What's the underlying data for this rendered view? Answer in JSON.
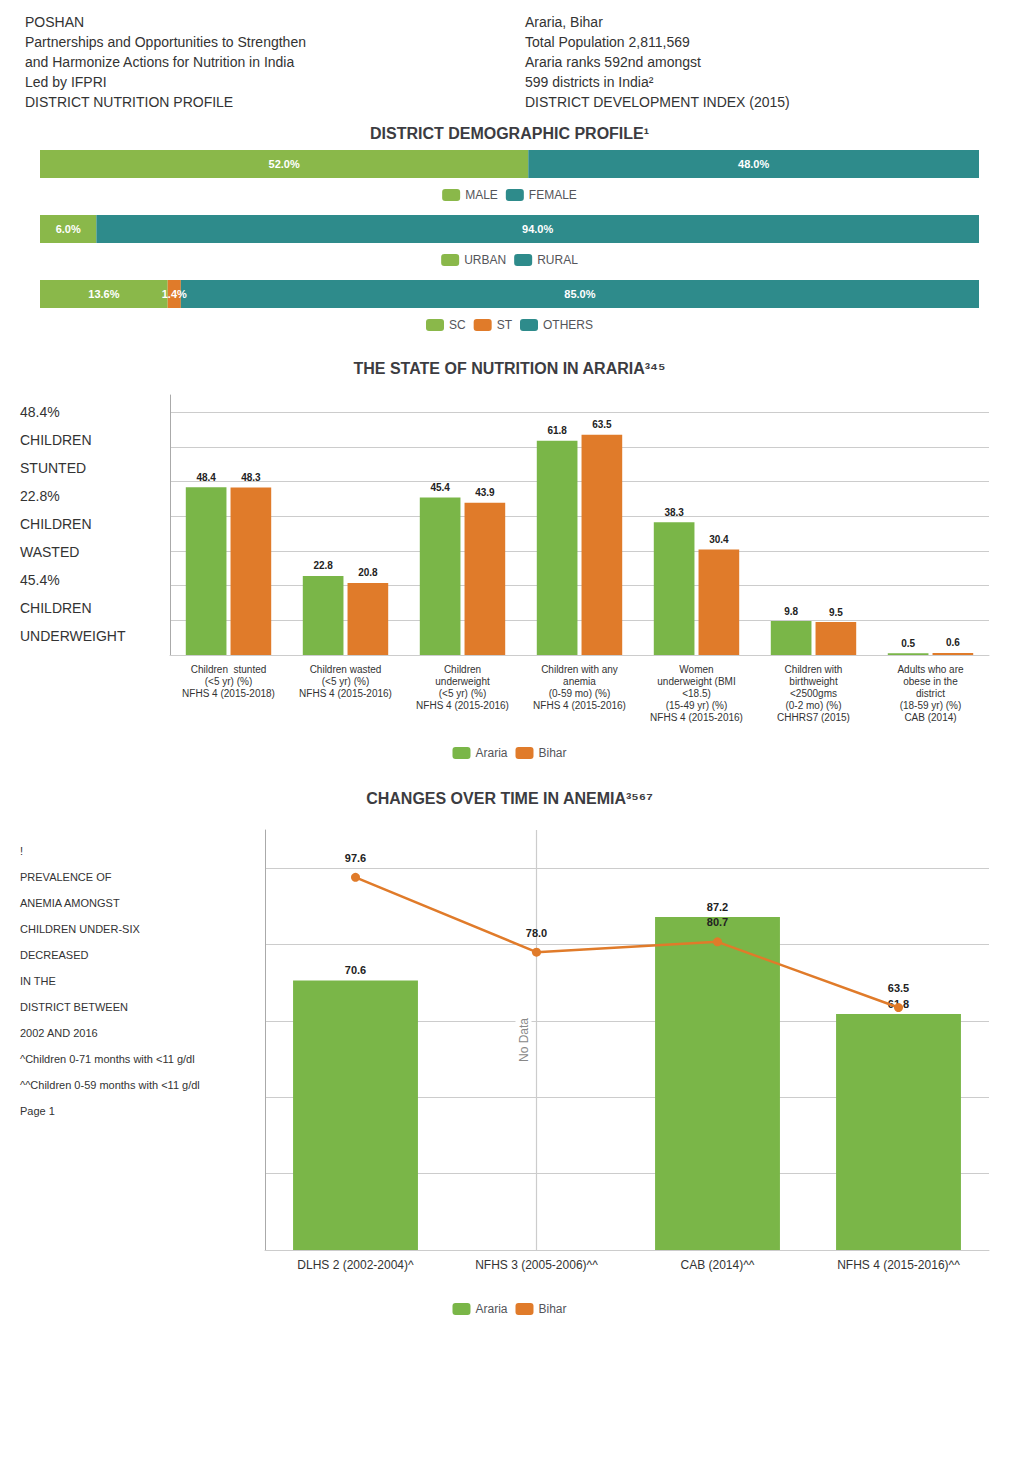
{
  "chart_data": [
    {
      "type": "bar",
      "orientation": "horizontal",
      "stacked": true,
      "title": "DISTRICT DEMOGRAPHIC PROFILE¹",
      "annotations": [
        {
          "text": "POSHAN"
        },
        {
          "text": "Partnerships and Opportunities to Strengthen"
        },
        {
          "text": "and Harmonize Actions for Nutrition in India"
        },
        {
          "text": "Led by IFPRI"
        },
        {
          "text": "DISTRICT NUTRITION PROFILE"
        },
        {
          "text": "Araria, Bihar"
        },
        {
          "text": "Total Population 2,811,569"
        },
        {
          "text": "Araria ranks 592nd amongst"
        },
        {
          "text": "599 districts in India²"
        },
        {
          "text": "DISTRICT DEVELOPMENT INDEX (2015)"
        }
      ],
      "categories": [
        null
      ],
      "series": [
        {
          "name": "MALE",
          "color": "#8ab84a",
          "values": [
            52.0
          ],
          "value_labels": [
            "52.0%"
          ]
        },
        {
          "name": "FEMALE",
          "color": "#2e8b8b",
          "values": [
            48.0
          ],
          "value_labels": [
            "48.0%"
          ]
        }
      ],
      "xlim": [
        0,
        100
      ],
      "xticks": [
        0,
        100
      ],
      "grid": false,
      "legend": "bottom",
      "data_labels": true,
      "tick_labels": false
    },
    {
      "type": "bar",
      "orientation": "horizontal",
      "stacked": true,
      "categories": [
        null
      ],
      "series": [
        {
          "name": "URBAN",
          "color": "#8ab84a",
          "values": [
            6.0
          ],
          "value_labels": [
            "6.0%"
          ]
        },
        {
          "name": "RURAL",
          "color": "#2e8b8b",
          "values": [
            94.0
          ],
          "value_labels": [
            "94.0%"
          ]
        }
      ],
      "xlim": [
        0,
        100
      ],
      "xticks": [
        0,
        100
      ],
      "grid": false,
      "legend": "bottom",
      "data_labels": true,
      "tick_labels": false
    },
    {
      "type": "bar",
      "orientation": "horizontal",
      "stacked": true,
      "categories": [
        null
      ],
      "series": [
        {
          "name": "SC",
          "color": "#8ab84a",
          "values": [
            13.6
          ],
          "value_labels": [
            "13.6%"
          ]
        },
        {
          "name": "ST",
          "color": "#e07b2a",
          "values": [
            1.4
          ],
          "value_labels": [
            "1.4%"
          ]
        },
        {
          "name": "OTHERS",
          "color": "#2e8b8b",
          "values": [
            85.0
          ],
          "value_labels": [
            "85.0%"
          ]
        }
      ],
      "xlim": [
        0,
        100
      ],
      "xticks": [
        0,
        100
      ],
      "grid": false,
      "legend": "bottom",
      "data_labels": true,
      "tick_labels": false
    },
    {
      "type": "bar",
      "title": "THE STATE OF NUTRITION IN ARARIA³⁴⁵",
      "annotations": [
        {
          "text": "48.4%"
        },
        {
          "text": "CHILDREN"
        },
        {
          "text": "STUNTED"
        },
        {
          "text": "22.8%"
        },
        {
          "text": "CHILDREN"
        },
        {
          "text": "WASTED"
        },
        {
          "text": "45.4%"
        },
        {
          "text": "CHILDREN"
        },
        {
          "text": "UNDERWEIGHT"
        }
      ],
      "categories": [
        "Children  stunted\n(<5 yr) (%)\nNFHS 4 (2015-2018)",
        "Children wasted\n(<5 yr) (%)\nNFHS 4 (2015-2016)",
        "Children\nunderweight\n(<5 yr) (%)\nNFHS 4 (2015-2016)",
        "Children with any\nanemia\n(0-59 mo) (%)\nNFHS 4 (2015-2016)",
        "Women\nunderweight (BMI\n<18.5)\n(15-49 yr) (%)\nNFHS 4 (2015-2016)",
        "Children with\nbirthweight\n<2500gms\n(0-2 mo) (%)\nCHHRS7 (2015)",
        "Adults who are\nobese in the\ndistrict\n(18-59 yr) (%)\nCAB (2014)"
      ],
      "series": [
        {
          "name": "Araria",
          "color": "#7ab648",
          "values": [
            48.4,
            22.8,
            45.4,
            61.8,
            38.3,
            9.8,
            0.5
          ]
        },
        {
          "name": "Bihar",
          "color": "#e07b2a",
          "values": [
            48.3,
            20.8,
            43.9,
            63.5,
            30.4,
            9.5,
            0.6
          ]
        }
      ],
      "ylim": [
        0,
        75
      ],
      "yticks": [
        0,
        10,
        20,
        30,
        40,
        50,
        60,
        70
      ],
      "grid": true,
      "legend": "bottom",
      "data_labels": true,
      "tick_labels": "x"
    },
    {
      "type": "bar",
      "title": "CHANGES OVER TIME IN ANEMIA³⁵⁶⁷",
      "annotations": [
        {
          "text": "No Data",
          "category": "NFHS 3 (2005-2006)^^"
        },
        {
          "text": "!"
        },
        {
          "text": "PREVALENCE OF"
        },
        {
          "text": "ANEMIA AMONGST"
        },
        {
          "text": "CHILDREN UNDER-SIX"
        },
        {
          "text": "DECREASED"
        },
        {
          "text": "IN THE"
        },
        {
          "text": "DISTRICT BETWEEN"
        },
        {
          "text": "2002 AND 2016"
        },
        {
          "text": "^Children 0-71 months with <11 g/dl"
        },
        {
          "text": "^^Children 0-59 months with <11 g/dl"
        },
        {
          "text": "Page 1"
        }
      ],
      "categories": [
        "DLHS 2 (2002-2004)^",
        "NFHS 3 (2005-2006)^^",
        "CAB (2014)^^",
        "NFHS 4 (2015-2016)^^"
      ],
      "series": [
        {
          "name": "Araria",
          "type": "bar",
          "color": "#7ab648",
          "values": [
            70.6,
            null,
            87.2,
            61.8
          ]
        },
        {
          "name": "Bihar",
          "type": "line",
          "color": "#e07b2a",
          "marker": "circle",
          "values": [
            97.6,
            78.0,
            80.7,
            63.5
          ],
          "value_labels": [
            "97.6",
            "78.0",
            "80.7",
            "63.5"
          ]
        }
      ],
      "ylim": [
        0,
        110
      ],
      "yticks": [
        0,
        20,
        40,
        60,
        80,
        100
      ],
      "grid": true,
      "legend": "bottom",
      "data_labels": true,
      "tick_labels": "x"
    }
  ]
}
